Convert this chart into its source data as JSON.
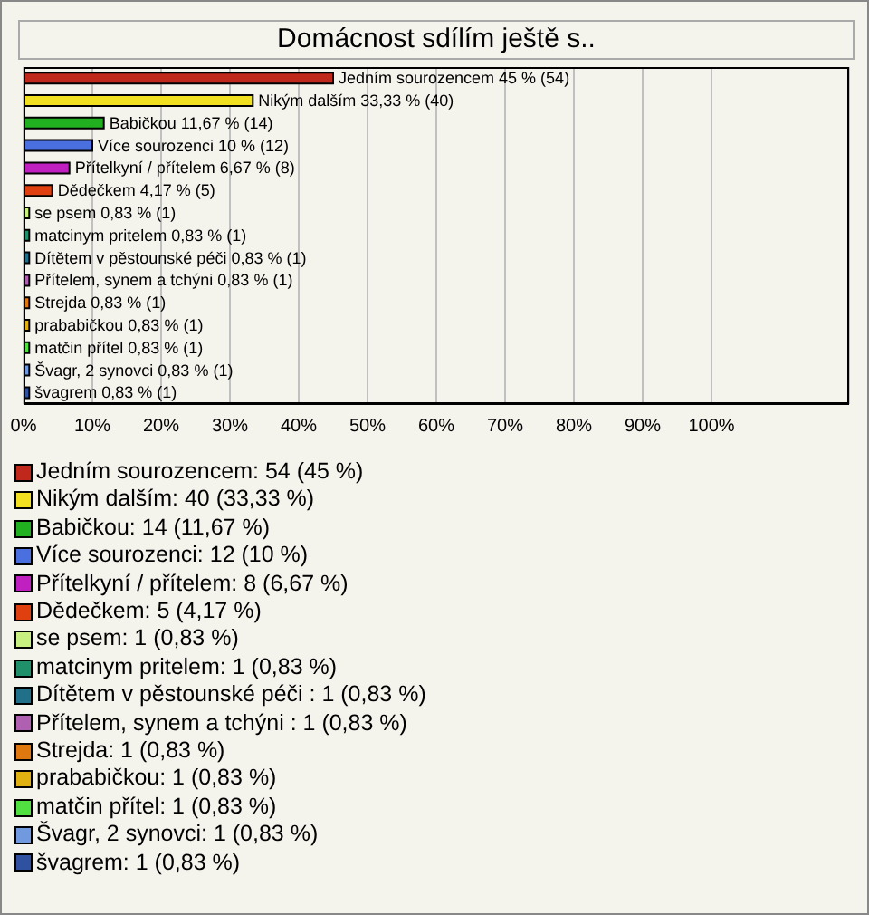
{
  "chart_data": {
    "type": "bar",
    "orientation": "horizontal",
    "title": "Domácnost sdílím ještě s..",
    "categories": [
      "Jedním sourozencem",
      "Nikým dalším",
      "Babičkou",
      "Více sourozenci",
      "Přítelkyní / přítelem",
      "Dědečkem",
      "se psem",
      "matcinym pritelem",
      "Dítětem v pěstounské péči ",
      "Přítelem, synem a tchýni",
      "Strejda",
      "prababičkou",
      "matčin přítel",
      "Švagr, 2 synovci",
      "švagrem"
    ],
    "values": [
      45,
      33.33,
      11.67,
      10,
      6.67,
      4.17,
      0.83,
      0.83,
      0.83,
      0.83,
      0.83,
      0.83,
      0.83,
      0.83,
      0.83
    ],
    "value_labels": [
      "45 % (54)",
      "33,33 % (40)",
      "11,67 % (14)",
      "10 % (12)",
      "6,67 % (8)",
      "4,17 % (5)",
      "0,83 % (1)",
      "0,83 % (1)",
      "0,83 % (1)",
      "0,83 % (1)",
      "0,83 % (1)",
      "0,83 % (1)",
      "0,83 % (1)",
      "0,83 % (1)",
      "0,83 % (1)"
    ],
    "colors": [
      "#c0281c",
      "#f0e020",
      "#20b020",
      "#4a70e0",
      "#c020c0",
      "#e04010",
      "#c8f080",
      "#20906a",
      "#20708a",
      "#b060b0",
      "#e07810",
      "#e0b010",
      "#50e040",
      "#7099e0",
      "#3050a0"
    ],
    "xlim": [
      0,
      120
    ],
    "xticks": [
      {
        "value": 0,
        "label": "0%"
      },
      {
        "value": 10,
        "label": "10%"
      },
      {
        "value": 20,
        "label": "20%"
      },
      {
        "value": 30,
        "label": "30%"
      },
      {
        "value": 40,
        "label": "40%"
      },
      {
        "value": 50,
        "label": "50%"
      },
      {
        "value": 60,
        "label": "60%"
      },
      {
        "value": 70,
        "label": "70%"
      },
      {
        "value": 80,
        "label": "80%"
      },
      {
        "value": 90,
        "label": "90%"
      },
      {
        "value": 100,
        "label": "100%"
      }
    ],
    "grid": "x",
    "tick_labels": "x",
    "annotations": [
      "Jedním sourozencem: 54 (45 %)",
      "Nikým dalším: 40 (33,33 %)",
      "Babičkou: 14 (11,67 %)",
      "Více sourozenci: 12 (10 %)",
      "Přítelkyní / přítelem: 8 (6,67 %)",
      "Dědečkem: 5 (4,17 %)",
      "se psem: 1 (0,83 %)",
      "matcinym pritelem: 1 (0,83 %)",
      "Dítětem v pěstounské péči : 1 (0,83 %)",
      "Přítelem, synem a tchýni : 1 (0,83 %)",
      "Strejda: 1 (0,83 %)",
      "prababičkou: 1 (0,83 %)",
      "matčin přítel: 1 (0,83 %)",
      "Švagr, 2 synovci: 1 (0,83 %)",
      "švagrem: 1 (0,83 %)"
    ]
  }
}
